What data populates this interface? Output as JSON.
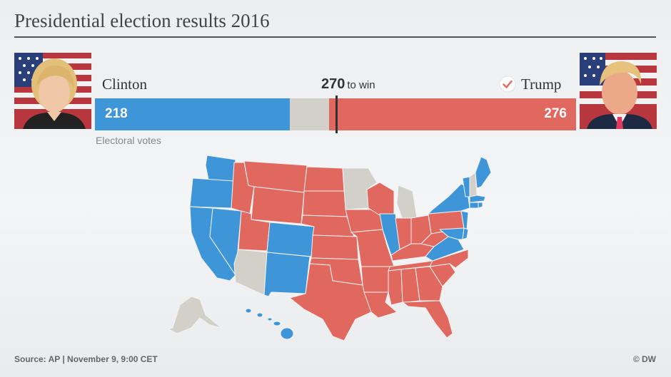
{
  "title": "Presidential election results 2016",
  "candidates": {
    "left": {
      "name": "Clinton",
      "votes": 218,
      "votes_label": "218",
      "color": "#3e96d8",
      "photo": "clinton-portrait"
    },
    "right": {
      "name": "Trump",
      "votes": 276,
      "votes_label": "276",
      "color": "#e0685f",
      "photo": "trump-portrait",
      "winner_icon": "check-icon"
    }
  },
  "threshold": {
    "value": "270",
    "label": "to win"
  },
  "sub_label": "Electoral votes",
  "source": "Source: AP | November 9, 9:00 CET",
  "credit": "© DW",
  "colors": {
    "dem": "#3e96d8",
    "rep": "#e0685f",
    "undecided": "#d3d0ca"
  },
  "chart_data": {
    "type": "bar",
    "stacked": true,
    "orientation": "horizontal",
    "total": 538,
    "threshold": 270,
    "series": [
      {
        "name": "Clinton",
        "values": [
          218
        ]
      },
      {
        "name": "Trump",
        "values": [
          276
        ]
      }
    ],
    "undecided": 44,
    "xlabel": "Electoral votes"
  }
}
